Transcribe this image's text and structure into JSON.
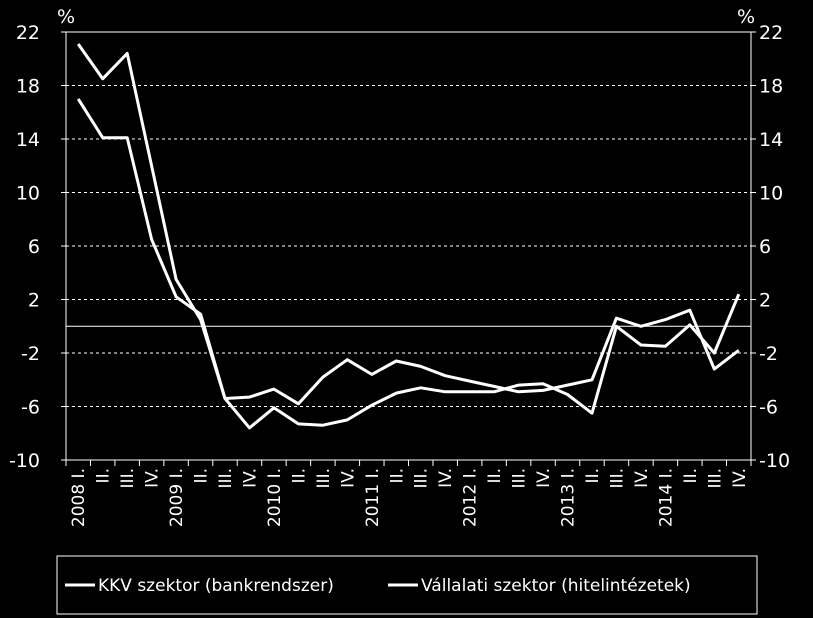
{
  "chart_data": {
    "type": "line",
    "y_unit_left": "%",
    "y_unit_right": "%",
    "ylim": [
      -10,
      22
    ],
    "yticks": [
      22,
      18,
      14,
      10,
      6,
      2,
      -2,
      -6,
      -10
    ],
    "ytick_labels": [
      "22",
      "18",
      "14",
      "10",
      "6",
      "2",
      "-2",
      "-6",
      "-10"
    ],
    "grid": true,
    "legend_position": "bottom",
    "x": [
      "2008 I.",
      "II.",
      "III.",
      "IV.",
      "2009 I.",
      "II.",
      "III.",
      "IV.",
      "2010 I.",
      "II.",
      "III.",
      "IV.",
      "2011 I.",
      "II.",
      "III.",
      "IV.",
      "2012 I.",
      "II.",
      "III.",
      "IV.",
      "2013 I.",
      "II.",
      "III.",
      "IV.",
      "2014 I.",
      "II.",
      "III.",
      "IV."
    ],
    "series": [
      {
        "name": "KKV szektor (bankrendszer)",
        "color": "#ffffff",
        "values": [
          21.1,
          18.5,
          20.4,
          12.0,
          3.5,
          0.5,
          -5.4,
          -5.3,
          -4.7,
          -5.8,
          -3.8,
          -2.5,
          -3.6,
          -2.6,
          -3.0,
          -3.7,
          -4.1,
          -4.5,
          -4.9,
          -4.8,
          -4.4,
          -4.0,
          0.6,
          0.0,
          0.5,
          1.2,
          -3.2,
          -1.8
        ]
      },
      {
        "name": "Vállalati szektor (hitelintézetek)",
        "color": "#ffffff",
        "values": [
          17.0,
          14.1,
          14.1,
          6.5,
          2.2,
          0.9,
          -5.4,
          -7.6,
          -6.1,
          -7.3,
          -7.4,
          -7.0,
          -5.9,
          -5.0,
          -4.6,
          -4.9,
          -4.9,
          -4.9,
          -4.4,
          -4.3,
          -5.1,
          -6.5,
          0.0,
          -1.4,
          -1.5,
          0.1,
          -2.0,
          2.4
        ]
      }
    ]
  }
}
